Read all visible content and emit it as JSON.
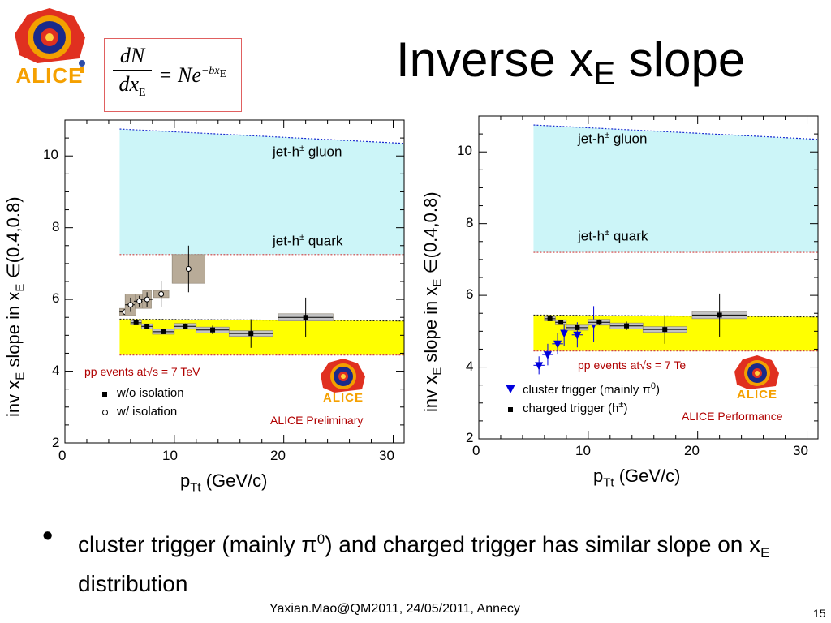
{
  "slide": {
    "title_main": "Inverse x",
    "title_sub": "E",
    "title_end": " slope",
    "bullet_text_1": "cluster trigger (mainly π",
    "bullet_sup": "0",
    "bullet_text_2": ") and charged trigger has similar slope on x",
    "bullet_sub": "E",
    "bullet_text_3": " distribution",
    "footer": "Yaxian.Mao@QM2011, 24/05/2011, Annecy",
    "page_number": "15"
  },
  "formula": {
    "numerator": "dN",
    "denominator": "dx",
    "den_sub": "E",
    "rhs": "= Ne",
    "exponent": "−bx",
    "exp_sub": "E"
  },
  "logo": {
    "text": "ALICE",
    "colors": {
      "ring": "#e03020",
      "core": "#1a2a8a",
      "text": "#f5a000"
    }
  },
  "colors": {
    "gluon_band": "#ccf5f8",
    "quark_band": "#ffff00",
    "gluon_line": "#1a2ad0",
    "band_line": "#d04040",
    "syst_box": "#b8ab98",
    "syst_box_small": "#c4c4c4",
    "cluster": "#0000dd",
    "red_text": "#b00000"
  },
  "chart_data": [
    {
      "type": "scatter",
      "xlabel_main": "p",
      "xlabel_sub": "Tt",
      "xlabel_end": " (GeV/c)",
      "ylabel_1": "inv x",
      "ylabel_sub1": "E",
      "ylabel_2": " slope in x",
      "ylabel_sub2": "E",
      "ylabel_3": " ∈(0.4,0.8)",
      "xlim": [
        0,
        31
      ],
      "ylim": [
        2,
        11
      ],
      "xticks": [
        "0",
        "10",
        "20",
        "30"
      ],
      "yticks": [
        "2",
        "4",
        "6",
        "8",
        "10"
      ],
      "bands": [
        {
          "name": "jet-h± gluon",
          "x": [
            5,
            31
          ],
          "top_left": 10.75,
          "top_right": 10.35,
          "bottom": 7.25
        },
        {
          "name": "jet-h± quark",
          "x": [
            5,
            31
          ],
          "top_left": 5.45,
          "top_right": 5.4,
          "bottom": 4.45
        }
      ],
      "annotations": {
        "gluon_prefix": "jet-h",
        "gluon_sup": "±",
        "gluon_suffix": " gluon",
        "quark_prefix": "jet-h",
        "quark_sup": "±",
        "quark_suffix": " quark",
        "pp_events": "pp events at√s = 7 TeV",
        "status": "ALICE Preliminary"
      },
      "legend": [
        {
          "marker": "square",
          "label": "w/o isolation"
        },
        {
          "marker": "open-circle",
          "label": "w/ isolation"
        }
      ],
      "series": [
        {
          "name": "w/o isolation",
          "marker": "square",
          "points": [
            {
              "x": 6.5,
              "y": 5.35,
              "xerr": 0.5,
              "yerr": 0.05,
              "syst_x": 0.5,
              "syst_y": 0.06
            },
            {
              "x": 7.5,
              "y": 5.25,
              "xerr": 0.5,
              "yerr": 0.06,
              "syst_x": 0.5,
              "syst_y": 0.07
            },
            {
              "x": 9,
              "y": 5.1,
              "xerr": 1,
              "yerr": 0.06,
              "syst_x": 1,
              "syst_y": 0.07
            },
            {
              "x": 11,
              "y": 5.25,
              "xerr": 1,
              "yerr": 0.08,
              "syst_x": 1,
              "syst_y": 0.08
            },
            {
              "x": 13.5,
              "y": 5.15,
              "xerr": 1.5,
              "yerr": 0.12,
              "syst_x": 1.5,
              "syst_y": 0.08
            },
            {
              "x": 17,
              "y": 5.05,
              "xerr": 2,
              "yerr": 0.4,
              "syst_x": 2,
              "syst_y": 0.08
            },
            {
              "x": 22,
              "y": 5.5,
              "xerr": 2.5,
              "yerr": 0.55,
              "syst_x": 2.5,
              "syst_y": 0.1
            }
          ]
        },
        {
          "name": "w/ isolation",
          "marker": "open-circle",
          "points": [
            {
              "x": 5.5,
              "y": 5.65,
              "xerr": 0.5,
              "yerr": 0.08,
              "syst_x": 0.5,
              "syst_y": 0.1
            },
            {
              "x": 6,
              "y": 5.85,
              "xerr": 0.5,
              "yerr": 0.2,
              "syst_x": 0.5,
              "syst_y": 0.3
            },
            {
              "x": 6.8,
              "y": 5.95,
              "xerr": 0.5,
              "yerr": 0.15,
              "syst_x": 0.4,
              "syst_y": 0.2
            },
            {
              "x": 7.5,
              "y": 6.0,
              "xerr": 0.5,
              "yerr": 0.2,
              "syst_x": 0.4,
              "syst_y": 0.25
            },
            {
              "x": 8.8,
              "y": 6.15,
              "xerr": 1,
              "yerr": 0.35,
              "syst_x": 0.7,
              "syst_y": 0.1
            },
            {
              "x": 11.3,
              "y": 6.85,
              "xerr": 1.5,
              "yerr": 0.65,
              "syst_x": 1.5,
              "syst_y": 0.4
            }
          ]
        }
      ]
    },
    {
      "type": "scatter",
      "xlabel_main": "p",
      "xlabel_sub": "Tt",
      "xlabel_end": " (GeV/c)",
      "ylabel_1": "inv x",
      "ylabel_sub1": "E",
      "ylabel_2": " slope in x",
      "ylabel_sub2": "E",
      "ylabel_3": " ∈(0.4,0.8)",
      "xlim": [
        0,
        31
      ],
      "ylim": [
        2,
        11
      ],
      "xticks": [
        "0",
        "10",
        "20",
        "30"
      ],
      "yticks": [
        "2",
        "4",
        "6",
        "8",
        "10"
      ],
      "bands": [
        {
          "name": "jet-h± gluon",
          "x": [
            5,
            31
          ],
          "top_left": 10.75,
          "top_right": 10.35,
          "bottom": 7.2
        },
        {
          "name": "jet-h± quark",
          "x": [
            5,
            31
          ],
          "top_left": 5.45,
          "top_right": 5.4,
          "bottom": 4.45
        }
      ],
      "annotations": {
        "gluon_prefix": "jet-h",
        "gluon_sup": "±",
        "gluon_suffix": " gluon",
        "quark_prefix": "jet-h",
        "quark_sup": "±",
        "quark_suffix": " quark",
        "pp_events": "pp events at√s = 7 Te",
        "status": "ALICE Performance"
      },
      "legend": [
        {
          "marker": "triangle",
          "label_prefix": "cluster trigger (mainly π",
          "label_sup": "0",
          "label_suffix": ")"
        },
        {
          "marker": "square",
          "label_prefix": "charged trigger (h",
          "label_sup": "±",
          "label_suffix": ")"
        }
      ],
      "series": [
        {
          "name": "cluster trigger (mainly π0)",
          "marker": "triangle",
          "points": [
            {
              "x": 5.5,
              "y": 4.05,
              "xerr": 0.5,
              "yerr": 0.25
            },
            {
              "x": 6.3,
              "y": 4.35,
              "xerr": 0.5,
              "yerr": 0.3
            },
            {
              "x": 7.2,
              "y": 4.65,
              "xerr": 0.5,
              "yerr": 0.3
            },
            {
              "x": 7.8,
              "y": 4.95,
              "xerr": 0.5,
              "yerr": 0.35
            },
            {
              "x": 9,
              "y": 4.9,
              "xerr": 0.5,
              "yerr": 0.35
            },
            {
              "x": 10.5,
              "y": 5.2,
              "xerr": 1,
              "yerr": 0.5
            }
          ]
        },
        {
          "name": "charged trigger (h±)",
          "marker": "square",
          "points": [
            {
              "x": 6.5,
              "y": 5.35,
              "xerr": 0.5,
              "yerr": 0.05,
              "syst_x": 0.5,
              "syst_y": 0.06
            },
            {
              "x": 7.5,
              "y": 5.25,
              "xerr": 0.5,
              "yerr": 0.06,
              "syst_x": 0.5,
              "syst_y": 0.07
            },
            {
              "x": 9,
              "y": 5.1,
              "xerr": 1,
              "yerr": 0.06,
              "syst_x": 1,
              "syst_y": 0.07
            },
            {
              "x": 11,
              "y": 5.25,
              "xerr": 1,
              "yerr": 0.08,
              "syst_x": 1,
              "syst_y": 0.08
            },
            {
              "x": 13.5,
              "y": 5.15,
              "xerr": 1.5,
              "yerr": 0.12,
              "syst_x": 1.5,
              "syst_y": 0.08
            },
            {
              "x": 17,
              "y": 5.05,
              "xerr": 2,
              "yerr": 0.4,
              "syst_x": 2,
              "syst_y": 0.08
            },
            {
              "x": 22,
              "y": 5.45,
              "xerr": 2.5,
              "yerr": 0.6,
              "syst_x": 2.5,
              "syst_y": 0.1
            }
          ]
        }
      ]
    }
  ]
}
